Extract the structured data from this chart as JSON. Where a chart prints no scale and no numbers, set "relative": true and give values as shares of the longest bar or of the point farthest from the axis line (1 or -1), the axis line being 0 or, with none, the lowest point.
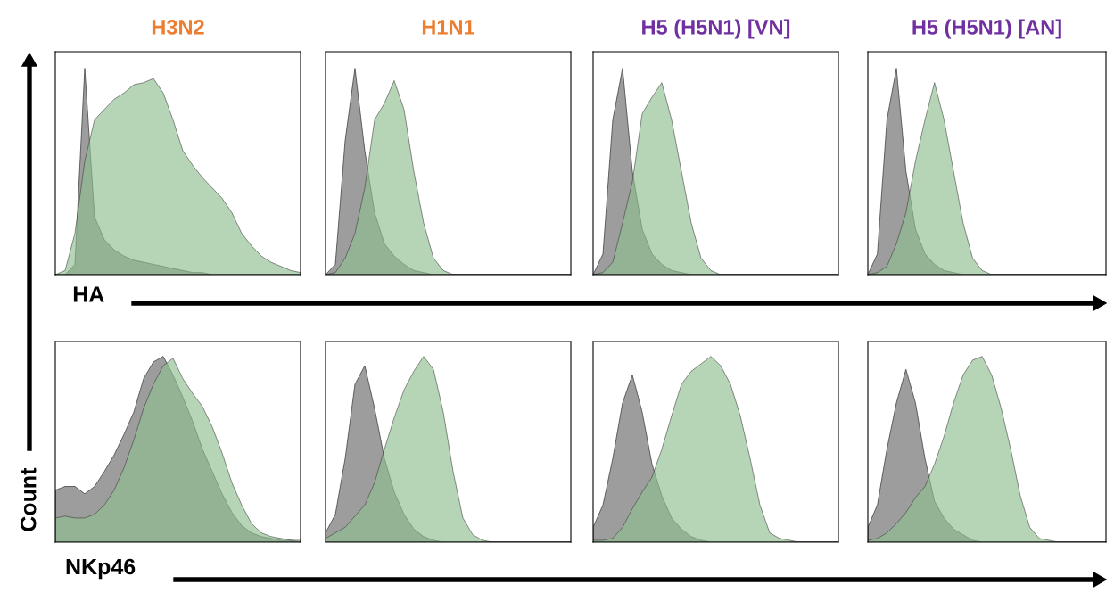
{
  "chart_data": [
    {
      "type": "area",
      "title": "H3N2",
      "xlabel": "HA",
      "relative": true,
      "tick_labels": false,
      "categories": [
        null,
        null,
        null,
        null,
        null,
        null,
        null,
        null,
        null,
        null,
        null,
        null,
        null,
        null,
        null,
        null,
        null,
        null,
        null,
        null,
        null,
        null,
        null,
        null,
        null,
        null
      ],
      "series": [
        {
          "color": "#8c8c8c",
          "values": [
            0,
            0,
            0.05,
            1.0,
            0.28,
            0.17,
            0.12,
            0.09,
            0.07,
            0.06,
            0.05,
            0.04,
            0.03,
            0.02,
            0.01,
            0.01,
            0,
            0,
            0,
            0,
            0,
            0,
            0,
            0,
            0,
            0
          ]
        },
        {
          "color": "#8fbf8f",
          "values": [
            0,
            0.02,
            0.2,
            0.55,
            0.75,
            0.8,
            0.85,
            0.88,
            0.92,
            0.93,
            0.95,
            0.88,
            0.75,
            0.6,
            0.53,
            0.47,
            0.42,
            0.37,
            0.3,
            0.2,
            0.14,
            0.09,
            0.06,
            0.04,
            0.02,
            0.01
          ]
        }
      ]
    },
    {
      "type": "area",
      "title": "H1N1",
      "relative": true,
      "tick_labels": false,
      "categories": [
        null,
        null,
        null,
        null,
        null,
        null,
        null,
        null,
        null,
        null,
        null,
        null,
        null,
        null,
        null,
        null,
        null,
        null,
        null,
        null,
        null,
        null,
        null,
        null,
        null,
        null
      ],
      "series": [
        {
          "color": "#8c8c8c",
          "values": [
            0,
            0.05,
            0.65,
            1.0,
            0.6,
            0.3,
            0.15,
            0.09,
            0.05,
            0.02,
            0.01,
            0,
            0,
            0,
            0,
            0,
            0,
            0,
            0,
            0,
            0,
            0,
            0,
            0,
            0,
            0
          ]
        },
        {
          "color": "#8fbf8f",
          "values": [
            0,
            0.01,
            0.08,
            0.2,
            0.42,
            0.75,
            0.83,
            0.94,
            0.8,
            0.5,
            0.25,
            0.08,
            0.02,
            0,
            0,
            0,
            0,
            0,
            0,
            0,
            0,
            0,
            0,
            0,
            0,
            0
          ]
        }
      ]
    },
    {
      "type": "area",
      "title": "H5 (H5N1) [VN]",
      "relative": true,
      "tick_labels": false,
      "categories": [
        null,
        null,
        null,
        null,
        null,
        null,
        null,
        null,
        null,
        null,
        null,
        null,
        null,
        null,
        null,
        null,
        null,
        null,
        null,
        null,
        null,
        null,
        null,
        null,
        null,
        null
      ],
      "series": [
        {
          "color": "#8c8c8c",
          "values": [
            0,
            0.1,
            0.75,
            1.0,
            0.5,
            0.22,
            0.1,
            0.05,
            0.02,
            0.01,
            0,
            0,
            0,
            0,
            0,
            0,
            0,
            0,
            0,
            0,
            0,
            0,
            0,
            0,
            0,
            0
          ]
        },
        {
          "color": "#8fbf8f",
          "values": [
            0,
            0.01,
            0.06,
            0.25,
            0.45,
            0.78,
            0.86,
            0.93,
            0.75,
            0.5,
            0.25,
            0.08,
            0.02,
            0,
            0,
            0,
            0,
            0,
            0,
            0,
            0,
            0,
            0,
            0,
            0,
            0
          ]
        }
      ]
    },
    {
      "type": "area",
      "title": "H5 (H5N1) [AN]",
      "relative": true,
      "tick_labels": false,
      "categories": [
        null,
        null,
        null,
        null,
        null,
        null,
        null,
        null,
        null,
        null,
        null,
        null,
        null,
        null,
        null,
        null,
        null,
        null,
        null,
        null,
        null,
        null,
        null,
        null,
        null,
        null
      ],
      "series": [
        {
          "color": "#8c8c8c",
          "values": [
            0,
            0.1,
            0.75,
            1.0,
            0.5,
            0.22,
            0.1,
            0.05,
            0.02,
            0.01,
            0,
            0,
            0,
            0,
            0,
            0,
            0,
            0,
            0,
            0,
            0,
            0,
            0,
            0,
            0,
            0
          ]
        },
        {
          "color": "#8fbf8f",
          "values": [
            0,
            0.01,
            0.04,
            0.15,
            0.3,
            0.55,
            0.75,
            0.93,
            0.75,
            0.5,
            0.25,
            0.08,
            0.02,
            0,
            0,
            0,
            0,
            0,
            0,
            0,
            0,
            0,
            0,
            0,
            0,
            0
          ]
        }
      ]
    },
    {
      "type": "area",
      "xlabel": "NKp46",
      "ylabel": "Count",
      "relative": true,
      "tick_labels": false,
      "categories": [
        null,
        null,
        null,
        null,
        null,
        null,
        null,
        null,
        null,
        null,
        null,
        null,
        null,
        null,
        null,
        null,
        null,
        null,
        null,
        null,
        null,
        null,
        null,
        null,
        null,
        null
      ],
      "series": [
        {
          "color": "#8c8c8c",
          "values": [
            0.28,
            0.3,
            0.3,
            0.26,
            0.3,
            0.38,
            0.47,
            0.58,
            0.7,
            0.88,
            0.97,
            1.0,
            0.9,
            0.78,
            0.65,
            0.5,
            0.38,
            0.26,
            0.16,
            0.09,
            0.05,
            0.03,
            0.02,
            0.01,
            0.01,
            0
          ]
        },
        {
          "color": "#8fbf8f",
          "values": [
            0.13,
            0.14,
            0.13,
            0.13,
            0.15,
            0.2,
            0.28,
            0.4,
            0.55,
            0.72,
            0.85,
            0.95,
            0.99,
            0.88,
            0.8,
            0.73,
            0.62,
            0.48,
            0.32,
            0.2,
            0.1,
            0.05,
            0.03,
            0.02,
            0.01,
            0.01
          ]
        }
      ]
    },
    {
      "type": "area",
      "relative": true,
      "tick_labels": false,
      "categories": [
        null,
        null,
        null,
        null,
        null,
        null,
        null,
        null,
        null,
        null,
        null,
        null,
        null,
        null,
        null,
        null,
        null,
        null,
        null,
        null,
        null,
        null,
        null,
        null,
        null,
        null
      ],
      "series": [
        {
          "color": "#8c8c8c",
          "values": [
            0.05,
            0.15,
            0.45,
            0.85,
            0.95,
            0.72,
            0.45,
            0.27,
            0.15,
            0.07,
            0.03,
            0.01,
            0,
            0,
            0,
            0,
            0,
            0,
            0,
            0,
            0,
            0,
            0,
            0,
            0,
            0
          ]
        },
        {
          "color": "#8fbf8f",
          "values": [
            0.02,
            0.05,
            0.08,
            0.14,
            0.2,
            0.32,
            0.5,
            0.67,
            0.82,
            0.92,
            1.0,
            0.93,
            0.7,
            0.38,
            0.13,
            0.04,
            0.01,
            0,
            0,
            0,
            0,
            0,
            0,
            0,
            0,
            0
          ]
        }
      ]
    },
    {
      "type": "area",
      "relative": true,
      "tick_labels": false,
      "categories": [
        null,
        null,
        null,
        null,
        null,
        null,
        null,
        null,
        null,
        null,
        null,
        null,
        null,
        null,
        null,
        null,
        null,
        null,
        null,
        null,
        null,
        null,
        null,
        null,
        null,
        null
      ],
      "series": [
        {
          "color": "#8c8c8c",
          "values": [
            0.08,
            0.2,
            0.45,
            0.75,
            0.9,
            0.7,
            0.42,
            0.25,
            0.13,
            0.07,
            0.03,
            0.01,
            0,
            0,
            0,
            0,
            0,
            0,
            0,
            0,
            0,
            0,
            0,
            0,
            0,
            0
          ]
        },
        {
          "color": "#8fbf8f",
          "values": [
            0.01,
            0.01,
            0.02,
            0.08,
            0.18,
            0.27,
            0.35,
            0.5,
            0.68,
            0.85,
            0.92,
            0.96,
            1.0,
            0.95,
            0.85,
            0.68,
            0.45,
            0.2,
            0.05,
            0.02,
            0.01,
            0,
            0,
            0,
            0,
            0
          ]
        }
      ]
    },
    {
      "type": "area",
      "relative": true,
      "tick_labels": false,
      "categories": [
        null,
        null,
        null,
        null,
        null,
        null,
        null,
        null,
        null,
        null,
        null,
        null,
        null,
        null,
        null,
        null,
        null,
        null,
        null,
        null,
        null,
        null,
        null,
        null,
        null,
        null
      ],
      "series": [
        {
          "color": "#8c8c8c",
          "values": [
            0.08,
            0.2,
            0.5,
            0.75,
            0.93,
            0.75,
            0.45,
            0.22,
            0.13,
            0.07,
            0.04,
            0.01,
            0,
            0,
            0,
            0,
            0,
            0,
            0,
            0,
            0,
            0,
            0,
            0,
            0,
            0
          ]
        },
        {
          "color": "#8fbf8f",
          "values": [
            0.01,
            0.02,
            0.05,
            0.1,
            0.16,
            0.24,
            0.3,
            0.42,
            0.57,
            0.75,
            0.9,
            0.98,
            1.0,
            0.9,
            0.72,
            0.5,
            0.25,
            0.08,
            0.02,
            0.01,
            0,
            0,
            0,
            0,
            0,
            0
          ]
        }
      ]
    }
  ]
}
